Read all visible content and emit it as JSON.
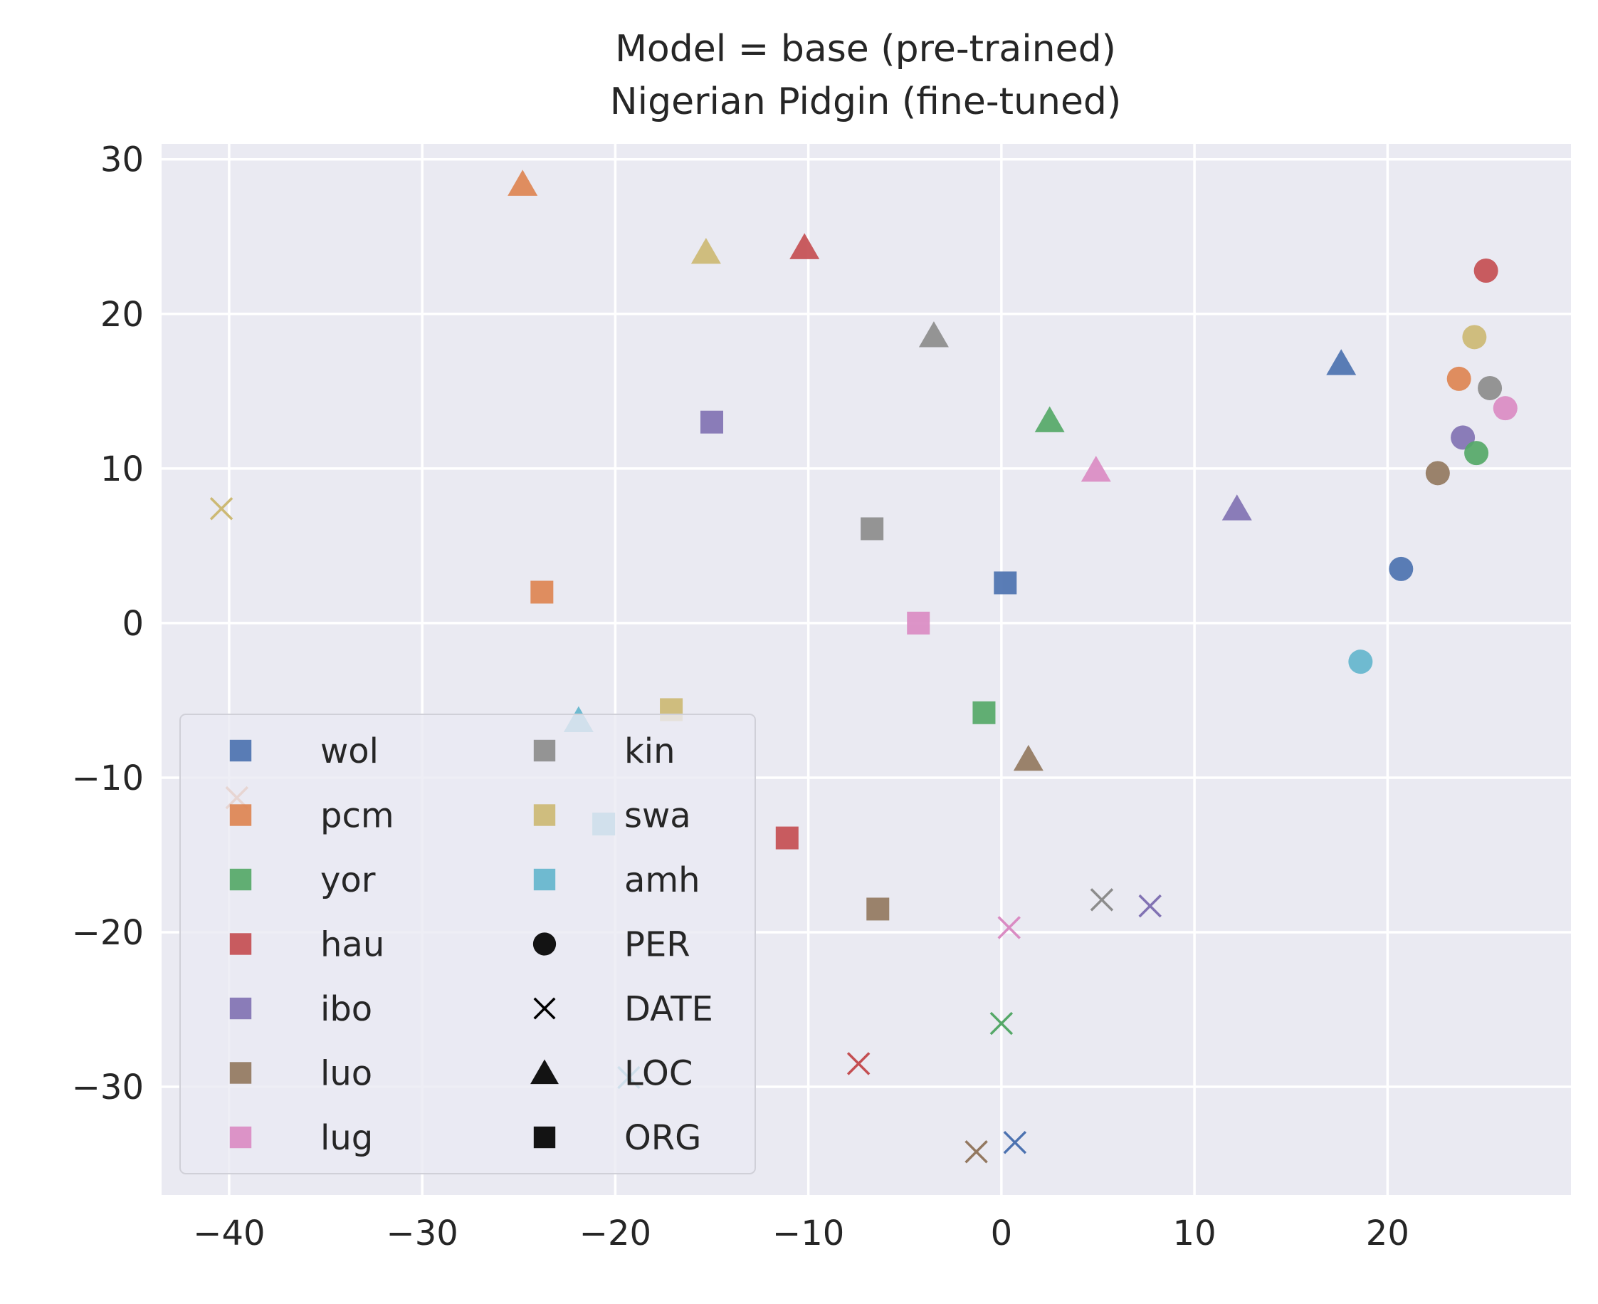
{
  "chart_data": {
    "type": "scatter",
    "title": [
      "Model = base (pre-trained)",
      "Nigerian Pidgin (fine-tuned)"
    ],
    "xlabel": "",
    "ylabel": "",
    "xlim": [
      -43.5,
      29.5
    ],
    "ylim": [
      -37,
      31
    ],
    "x_ticks": [
      -40,
      -30,
      -20,
      -10,
      0,
      10,
      20
    ],
    "y_ticks": [
      -30,
      -20,
      -10,
      0,
      10,
      20,
      30
    ],
    "x_tick_labels": [
      "−40",
      "−30",
      "−20",
      "−10",
      "0",
      "10",
      "20"
    ],
    "y_tick_labels": [
      "−30",
      "−20",
      "−10",
      "0",
      "10",
      "20",
      "30"
    ],
    "grid": true,
    "legend_position": "lower-left",
    "languages": [
      {
        "name": "wol",
        "color": "#4c72b0"
      },
      {
        "name": "pcm",
        "color": "#dd8452"
      },
      {
        "name": "yor",
        "color": "#55a868"
      },
      {
        "name": "hau",
        "color": "#c44e52"
      },
      {
        "name": "ibo",
        "color": "#8172b3"
      },
      {
        "name": "luo",
        "color": "#937860"
      },
      {
        "name": "lug",
        "color": "#da8bc3"
      },
      {
        "name": "kin",
        "color": "#8c8c8c"
      },
      {
        "name": "swa",
        "color": "#ccb974"
      },
      {
        "name": "amh",
        "color": "#64b5cd"
      }
    ],
    "entity_types": [
      {
        "name": "PER",
        "marker": "circle"
      },
      {
        "name": "DATE",
        "marker": "x"
      },
      {
        "name": "LOC",
        "marker": "triangle"
      },
      {
        "name": "ORG",
        "marker": "square"
      }
    ],
    "points": [
      {
        "lang": "hau",
        "type": "PER",
        "x": 25.1,
        "y": 22.8
      },
      {
        "lang": "swa",
        "type": "PER",
        "x": 24.5,
        "y": 18.5
      },
      {
        "lang": "pcm",
        "type": "PER",
        "x": 23.7,
        "y": 15.8
      },
      {
        "lang": "kin",
        "type": "PER",
        "x": 25.3,
        "y": 15.2
      },
      {
        "lang": "lug",
        "type": "PER",
        "x": 26.1,
        "y": 13.9
      },
      {
        "lang": "ibo",
        "type": "PER",
        "x": 23.9,
        "y": 12.0
      },
      {
        "lang": "yor",
        "type": "PER",
        "x": 24.6,
        "y": 11.0
      },
      {
        "lang": "luo",
        "type": "PER",
        "x": 22.6,
        "y": 9.7
      },
      {
        "lang": "wol",
        "type": "PER",
        "x": 20.7,
        "y": 3.5
      },
      {
        "lang": "amh",
        "type": "PER",
        "x": 18.6,
        "y": -2.5
      },
      {
        "lang": "swa",
        "type": "DATE",
        "x": -40.4,
        "y": 7.4
      },
      {
        "lang": "pcm",
        "type": "DATE",
        "x": -39.6,
        "y": -11.3
      },
      {
        "lang": "kin",
        "type": "DATE",
        "x": 5.2,
        "y": -17.9
      },
      {
        "lang": "ibo",
        "type": "DATE",
        "x": 7.7,
        "y": -18.3
      },
      {
        "lang": "lug",
        "type": "DATE",
        "x": 0.4,
        "y": -19.7
      },
      {
        "lang": "yor",
        "type": "DATE",
        "x": 0.0,
        "y": -25.9
      },
      {
        "lang": "hau",
        "type": "DATE",
        "x": -7.4,
        "y": -28.5
      },
      {
        "lang": "amh",
        "type": "DATE",
        "x": -19.3,
        "y": -29.4
      },
      {
        "lang": "wol",
        "type": "DATE",
        "x": 0.7,
        "y": -33.6
      },
      {
        "lang": "luo",
        "type": "DATE",
        "x": -1.3,
        "y": -34.2
      },
      {
        "lang": "pcm",
        "type": "LOC",
        "x": -24.8,
        "y": 28.4
      },
      {
        "lang": "swa",
        "type": "LOC",
        "x": -15.3,
        "y": 24.0
      },
      {
        "lang": "hau",
        "type": "LOC",
        "x": -10.2,
        "y": 24.3
      },
      {
        "lang": "kin",
        "type": "LOC",
        "x": -3.5,
        "y": 18.6
      },
      {
        "lang": "wol",
        "type": "LOC",
        "x": 17.6,
        "y": 16.8
      },
      {
        "lang": "yor",
        "type": "LOC",
        "x": 2.5,
        "y": 13.1
      },
      {
        "lang": "lug",
        "type": "LOC",
        "x": 4.9,
        "y": 9.9
      },
      {
        "lang": "ibo",
        "type": "LOC",
        "x": 12.2,
        "y": 7.4
      },
      {
        "lang": "amh",
        "type": "LOC",
        "x": -21.9,
        "y": -6.3
      },
      {
        "lang": "luo",
        "type": "LOC",
        "x": 1.4,
        "y": -8.8
      },
      {
        "lang": "ibo",
        "type": "ORG",
        "x": -15.0,
        "y": 13.0
      },
      {
        "lang": "kin",
        "type": "ORG",
        "x": -6.7,
        "y": 6.1
      },
      {
        "lang": "wol",
        "type": "ORG",
        "x": 0.2,
        "y": 2.6
      },
      {
        "lang": "pcm",
        "type": "ORG",
        "x": -23.8,
        "y": 2.0
      },
      {
        "lang": "lug",
        "type": "ORG",
        "x": -4.3,
        "y": 0.0
      },
      {
        "lang": "swa",
        "type": "ORG",
        "x": -17.1,
        "y": -5.6
      },
      {
        "lang": "yor",
        "type": "ORG",
        "x": -0.9,
        "y": -5.8
      },
      {
        "lang": "amh",
        "type": "ORG",
        "x": -20.6,
        "y": -13.0
      },
      {
        "lang": "hau",
        "type": "ORG",
        "x": -11.1,
        "y": -13.9
      },
      {
        "lang": "luo",
        "type": "ORG",
        "x": -6.4,
        "y": -18.5
      }
    ]
  }
}
